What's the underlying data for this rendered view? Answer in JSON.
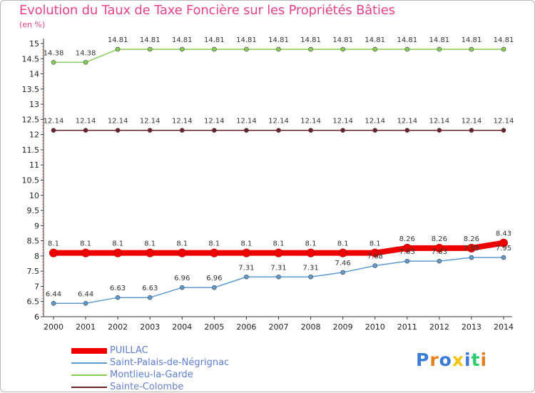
{
  "title": "Evolution du Taux de Taxe Foncière sur les Propriétés Bâties",
  "unit_label": "(en %)",
  "logo": {
    "text": "Proxiti"
  },
  "chart_data": {
    "type": "line",
    "title": "Evolution du Taux de Taxe Foncière sur les Propriétés Bâties",
    "ylabel": "(en %)",
    "xlabel": "",
    "categories": [
      "2000",
      "2001",
      "2002",
      "2003",
      "2004",
      "2005",
      "2006",
      "2007",
      "2008",
      "2009",
      "2010",
      "2011",
      "2012",
      "2013",
      "2014"
    ],
    "ylim": [
      6,
      15
    ],
    "yticks": [
      "6",
      "6.5",
      "7",
      "7.5",
      "8",
      "8.5",
      "9",
      "9.5",
      "10",
      "10.5",
      "11",
      "11.5",
      "12",
      "12.5",
      "13",
      "13.5",
      "14",
      "14.5",
      "15"
    ],
    "grid": false,
    "series": [
      {
        "name": "PUILLAC",
        "color": "#ee0000",
        "values": [
          8.1,
          8.1,
          8.1,
          8.1,
          8.1,
          8.1,
          8.1,
          8.1,
          8.1,
          8.1,
          8.1,
          8.26,
          8.26,
          8.26,
          8.43
        ],
        "labels": [
          "8.1",
          "8.1",
          "8.1",
          "8.1",
          "8.1",
          "8.1",
          "8.1",
          "8.1",
          "8.1",
          "8.1",
          "8.1",
          "8.26",
          "8.26",
          "8.26",
          "8.43"
        ]
      },
      {
        "name": "Saint-Palais-de-Négrignac",
        "color": "#5d9ad0",
        "values": [
          6.44,
          6.44,
          6.63,
          6.63,
          6.96,
          6.96,
          7.31,
          7.31,
          7.31,
          7.46,
          7.68,
          7.83,
          7.83,
          7.95,
          7.95
        ],
        "labels": [
          "6.44",
          "6.44",
          "6.63",
          "6.63",
          "6.96",
          "6.96",
          "7.31",
          "7.31",
          "7.31",
          "7.46",
          "7.68",
          "7.83",
          "7.83",
          "7.95",
          "7.95"
        ]
      },
      {
        "name": "Montlieu-la-Garde",
        "color": "#88cc55",
        "values": [
          14.38,
          14.38,
          14.81,
          14.81,
          14.81,
          14.81,
          14.81,
          14.81,
          14.81,
          14.81,
          14.81,
          14.81,
          14.81,
          14.81,
          14.81
        ],
        "labels": [
          "14.38",
          "14.38",
          "14.81",
          "14.81",
          "14.81",
          "14.81",
          "14.81",
          "14.81",
          "14.81",
          "14.81",
          "14.81",
          "14.81",
          "14.81",
          "14.81",
          "14.81"
        ]
      },
      {
        "name": "Sainte-Colombe",
        "color": "#6a2228",
        "values": [
          12.14,
          12.14,
          12.14,
          12.14,
          12.14,
          12.14,
          12.14,
          12.14,
          12.14,
          12.14,
          12.14,
          12.14,
          12.14,
          12.14,
          12.14
        ],
        "labels": [
          "12.14",
          "12.14",
          "12.14",
          "12.14",
          "12.14",
          "12.14",
          "12.14",
          "12.14",
          "12.14",
          "12.14",
          "12.14",
          "12.14",
          "12.14",
          "12.14",
          "12.14"
        ]
      }
    ],
    "legend": "bottom-left"
  }
}
